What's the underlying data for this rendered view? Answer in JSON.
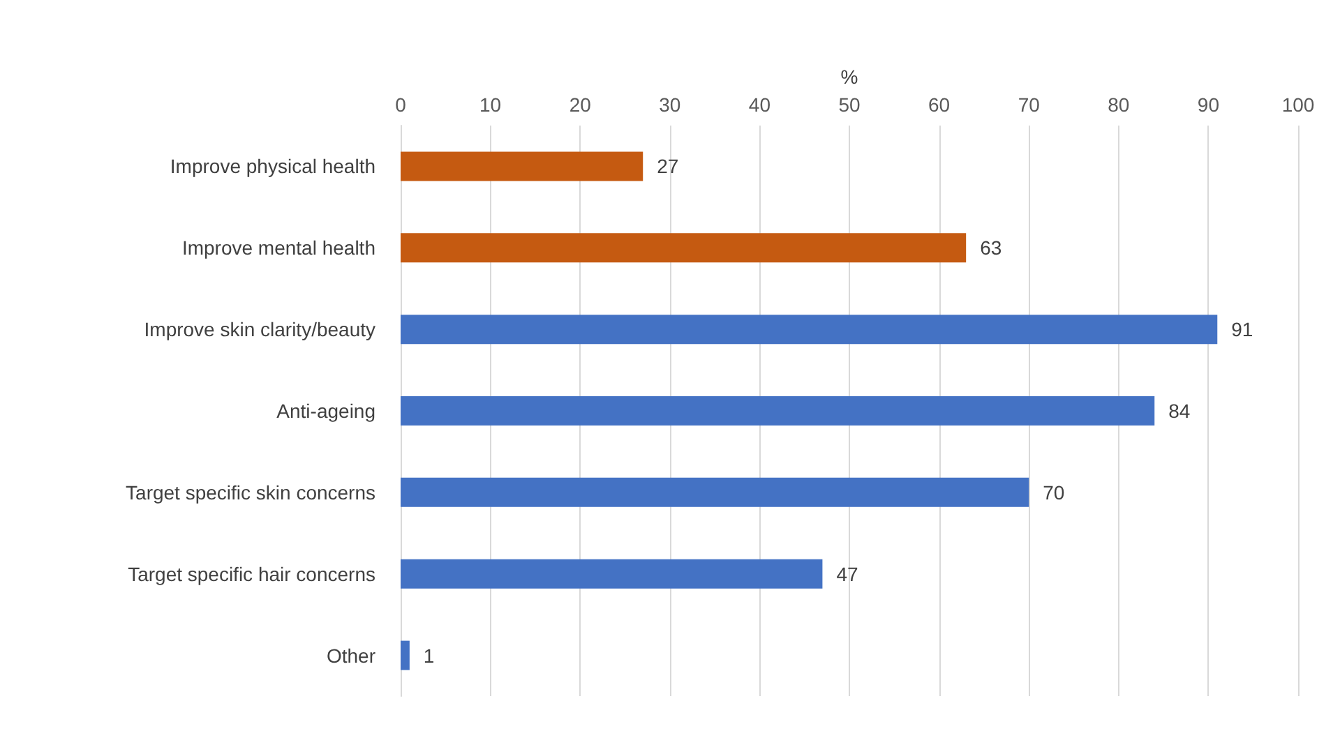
{
  "chart_data": {
    "type": "bar",
    "orientation": "horizontal",
    "xlabel": "%",
    "categories": [
      "Improve physical health",
      "Improve mental health",
      "Improve skin clarity/beauty",
      "Anti-ageing",
      "Target specific skin concerns",
      "Target specific hair concerns",
      "Other"
    ],
    "values": [
      27,
      63,
      91,
      84,
      70,
      47,
      1
    ],
    "colors": [
      "#c55a11",
      "#c55a11",
      "#4472c4",
      "#4472c4",
      "#4472c4",
      "#4472c4",
      "#4472c4"
    ],
    "xlim": [
      0,
      100
    ],
    "xticks": [
      0,
      10,
      20,
      30,
      40,
      50,
      60,
      70,
      80,
      90,
      100
    ],
    "grid": "x",
    "data_labels": true
  }
}
